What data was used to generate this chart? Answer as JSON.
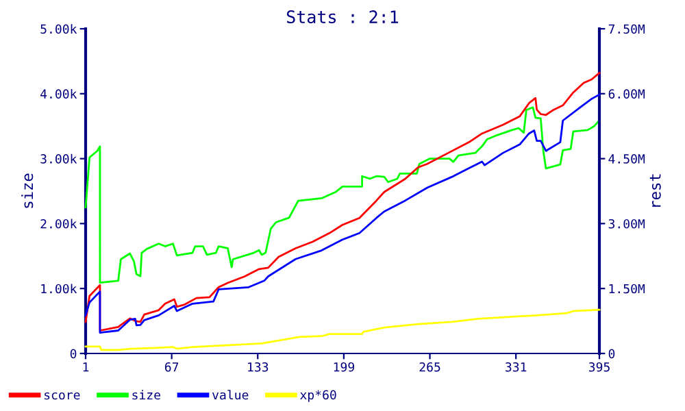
{
  "chart_data": {
    "type": "line",
    "title": "Stats : 2:1",
    "ylabel": "size",
    "y2label": "rest",
    "xlim": [
      1,
      395
    ],
    "xticks": [
      1,
      67,
      133,
      199,
      265,
      331,
      395
    ],
    "ylim": [
      0,
      5
    ],
    "yticks": [
      0,
      {
        "value": 1,
        "label": "1.00k"
      },
      {
        "value": 2,
        "label": "2.00k"
      },
      {
        "value": 3,
        "label": "3.00k"
      },
      {
        "value": 4,
        "label": "4.00k"
      },
      {
        "value": 5,
        "label": "5.00k"
      }
    ],
    "y2lim": [
      0,
      7.5
    ],
    "y2ticks": [
      0,
      {
        "value": 1.5,
        "label": "1.50M"
      },
      {
        "value": 3,
        "label": "3.00M"
      },
      {
        "value": 4.5,
        "label": "4.50M"
      },
      {
        "value": 6,
        "label": "6.00M"
      },
      {
        "value": 7.5,
        "label": "7.50M"
      }
    ],
    "grid": false,
    "legend": "bottom",
    "series": [
      {
        "name": "score",
        "color": "#ff0000",
        "axis": "y2",
        "x": [
          1,
          4,
          12,
          12,
          26,
          29,
          35,
          39,
          43,
          46,
          57,
          62,
          69,
          71,
          77,
          86,
          96,
          103,
          110,
          123,
          134,
          141,
          149,
          162,
          175,
          188,
          198,
          211,
          224,
          230,
          246,
          256,
          263,
          279,
          295,
          305,
          321,
          334,
          341,
          346,
          347,
          350,
          354,
          360,
          367,
          375,
          383,
          389,
          395
        ],
        "values": [
          0.73,
          1.33,
          1.58,
          0.53,
          0.61,
          0.68,
          0.81,
          0.75,
          0.73,
          0.9,
          1.0,
          1.15,
          1.25,
          1.08,
          1.13,
          1.28,
          1.3,
          1.53,
          1.63,
          1.78,
          1.95,
          1.98,
          2.23,
          2.43,
          2.58,
          2.78,
          2.97,
          3.13,
          3.53,
          3.73,
          4.03,
          4.3,
          4.38,
          4.63,
          4.88,
          5.08,
          5.28,
          5.48,
          5.78,
          5.9,
          5.63,
          5.53,
          5.51,
          5.63,
          5.73,
          6.03,
          6.25,
          6.33,
          6.48
        ]
      },
      {
        "name": "size",
        "color": "#00ff00",
        "x": [
          1,
          4,
          10,
          12,
          12,
          26,
          28,
          35,
          38,
          40,
          43,
          44,
          48,
          57,
          62,
          68,
          71,
          83,
          85,
          91,
          94,
          101,
          103,
          110,
          113,
          114,
          130,
          134,
          136,
          139,
          143,
          147,
          157,
          164,
          182,
          193,
          198,
          213,
          213,
          219,
          224,
          230,
          233,
          240,
          242,
          255,
          257,
          265,
          280,
          283,
          287,
          300,
          305,
          309,
          315,
          328,
          333,
          337,
          339,
          344,
          346,
          350,
          352,
          354,
          365,
          367,
          373,
          375,
          386,
          391,
          395
        ],
        "values": [
          2.25,
          3.02,
          3.12,
          3.19,
          1.09,
          1.12,
          1.45,
          1.54,
          1.42,
          1.22,
          1.19,
          1.55,
          1.61,
          1.69,
          1.65,
          1.69,
          1.51,
          1.55,
          1.65,
          1.65,
          1.52,
          1.55,
          1.65,
          1.62,
          1.33,
          1.45,
          1.55,
          1.59,
          1.52,
          1.55,
          1.92,
          2.02,
          2.09,
          2.35,
          2.39,
          2.49,
          2.57,
          2.57,
          2.73,
          2.69,
          2.73,
          2.72,
          2.64,
          2.69,
          2.77,
          2.77,
          2.92,
          3.0,
          3.0,
          2.95,
          3.05,
          3.09,
          3.19,
          3.3,
          3.35,
          3.44,
          3.47,
          3.4,
          3.75,
          3.79,
          3.63,
          3.62,
          3.12,
          2.85,
          2.91,
          3.13,
          3.15,
          3.42,
          3.44,
          3.5,
          3.59
        ]
      },
      {
        "name": "value",
        "color": "#0000ff",
        "axis": "y2",
        "x": [
          1,
          4,
          12,
          12,
          26,
          35,
          39,
          40,
          43,
          46,
          57,
          69,
          71,
          83,
          99,
          103,
          126,
          138,
          141,
          162,
          182,
          198,
          211,
          224,
          230,
          246,
          263,
          282,
          295,
          305,
          307,
          321,
          334,
          341,
          345,
          347,
          350,
          354,
          365,
          367,
          380,
          389,
          395
        ],
        "values": [
          0.88,
          1.18,
          1.43,
          0.48,
          0.53,
          0.78,
          0.8,
          0.65,
          0.66,
          0.77,
          0.88,
          1.1,
          0.98,
          1.15,
          1.2,
          1.48,
          1.53,
          1.68,
          1.78,
          2.18,
          2.38,
          2.63,
          2.78,
          3.13,
          3.28,
          3.53,
          3.83,
          4.08,
          4.28,
          4.43,
          4.35,
          4.63,
          4.83,
          5.08,
          5.15,
          4.91,
          4.91,
          4.68,
          4.88,
          5.38,
          5.68,
          5.88,
          5.98
        ]
      },
      {
        "name": "xp*60",
        "color": "#ffff00",
        "axis": "y2",
        "x": [
          1,
          12,
          13,
          26,
          36,
          55,
          68,
          71,
          83,
          116,
          136,
          149,
          165,
          182,
          188,
          198,
          213,
          214,
          230,
          256,
          282,
          302,
          328,
          347,
          370,
          375,
          395
        ],
        "values": [
          0.16,
          0.16,
          0.08,
          0.08,
          0.11,
          0.13,
          0.15,
          0.11,
          0.15,
          0.2,
          0.23,
          0.3,
          0.38,
          0.4,
          0.45,
          0.45,
          0.45,
          0.5,
          0.6,
          0.68,
          0.73,
          0.8,
          0.85,
          0.88,
          0.93,
          0.98,
          1.01
        ]
      }
    ]
  }
}
